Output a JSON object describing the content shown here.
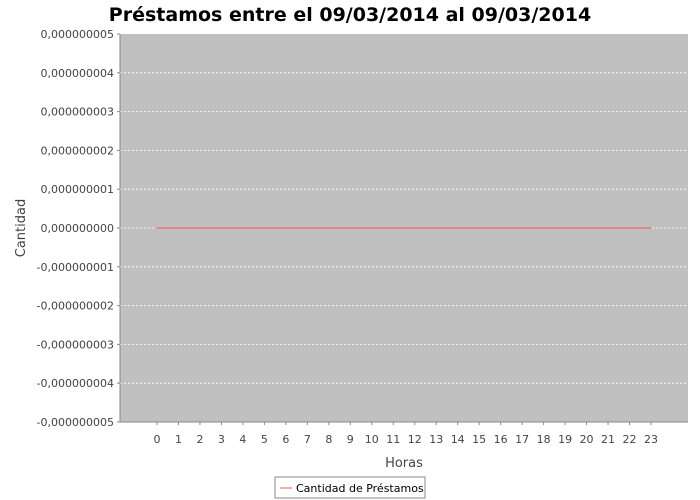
{
  "chart_data": {
    "type": "line",
    "title": "Préstamos entre el  09/03/2014 al 09/03/2014",
    "xlabel": "Horas",
    "ylabel": "Cantidad",
    "categories": [
      "0",
      "1",
      "2",
      "3",
      "4",
      "5",
      "6",
      "7",
      "8",
      "9",
      "10",
      "11",
      "12",
      "13",
      "14",
      "15",
      "16",
      "17",
      "18",
      "19",
      "20",
      "21",
      "22",
      "23"
    ],
    "y_ticks": [
      {
        "value": 5e-09,
        "label": "0,000000005"
      },
      {
        "value": 4e-09,
        "label": "0,000000004"
      },
      {
        "value": 3e-09,
        "label": "0,000000003"
      },
      {
        "value": 2e-09,
        "label": "0,000000002"
      },
      {
        "value": 1e-09,
        "label": "0,000000001"
      },
      {
        "value": 0,
        "label": "0,000000000"
      },
      {
        "value": -1e-09,
        "label": "-0,000000001"
      },
      {
        "value": -2e-09,
        "label": "-0,000000002"
      },
      {
        "value": -3e-09,
        "label": "-0,000000003"
      },
      {
        "value": -4e-09,
        "label": "-0,000000004"
      },
      {
        "value": -5e-09,
        "label": "-0,000000005"
      }
    ],
    "ylim": [
      -5e-09,
      5e-09
    ],
    "grid": true,
    "legend_position": "bottom",
    "series": [
      {
        "name": "Cantidad de Préstamos",
        "color": "#ff5555",
        "values": [
          0,
          0,
          0,
          0,
          0,
          0,
          0,
          0,
          0,
          0,
          0,
          0,
          0,
          0,
          0,
          0,
          0,
          0,
          0,
          0,
          0,
          0,
          0,
          0
        ]
      }
    ],
    "colors": {
      "plot_background": "#c0c0c0",
      "gridline": "#ffffff",
      "axis_line": "#888888"
    }
  }
}
